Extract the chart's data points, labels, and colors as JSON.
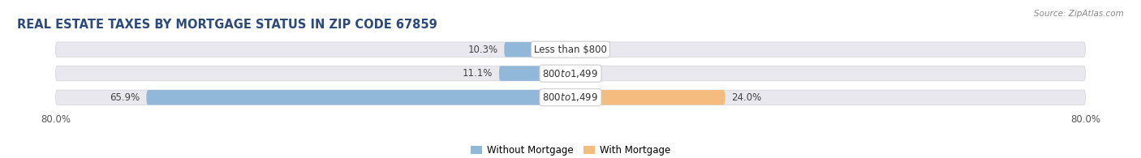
{
  "title": "REAL ESTATE TAXES BY MORTGAGE STATUS IN ZIP CODE 67859",
  "source": "Source: ZipAtlas.com",
  "rows": [
    {
      "label": "Less than $800",
      "without_mortgage": 10.3,
      "with_mortgage": 0.0
    },
    {
      "label": "$800 to $1,499",
      "without_mortgage": 11.1,
      "with_mortgage": 0.0
    },
    {
      "label": "$800 to $1,499",
      "without_mortgage": 65.9,
      "with_mortgage": 24.0
    }
  ],
  "x_min": -80.0,
  "x_max": 80.0,
  "x_tick_labels_left": "80.0%",
  "x_tick_labels_right": "80.0%",
  "color_without": "#92b8d9",
  "color_with": "#f5bc80",
  "bg_color": "#ffffff",
  "bar_bg_color": "#e8e8ee",
  "bar_height": 0.62,
  "bar_gap": 0.18,
  "legend_labels": [
    "Without Mortgage",
    "With Mortgage"
  ],
  "title_color": "#2c4a7c",
  "source_color": "#888888",
  "label_fontsize": 8.5,
  "value_fontsize": 8.5,
  "title_fontsize": 10.5
}
